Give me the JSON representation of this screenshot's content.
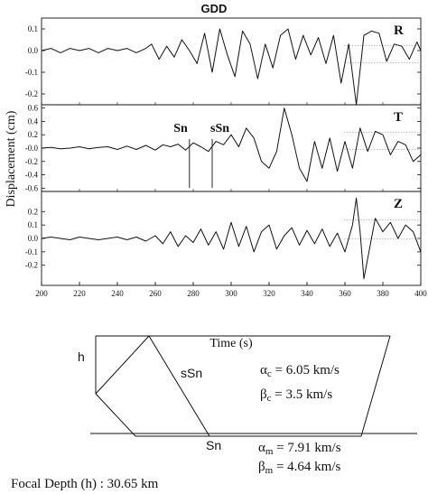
{
  "chart_data": {
    "type": "line",
    "title": "GDD",
    "xlabel": "Time (s)",
    "ylabel": "Displacement (cm)",
    "xlim": [
      200,
      400
    ],
    "x_ticks": [
      200,
      220,
      240,
      260,
      280,
      300,
      320,
      340,
      360,
      380,
      400
    ],
    "panels": [
      {
        "component": "R",
        "ylim": [
          -0.25,
          0.15
        ],
        "y_ticks": [
          0.1,
          0.0,
          -0.1,
          -0.2
        ],
        "y_tick_labels": [
          "0.1",
          "0.0",
          "-0.1",
          "-0.2"
        ],
        "x": [
          200,
          205,
          210,
          215,
          220,
          225,
          230,
          235,
          240,
          245,
          250,
          255,
          258,
          262,
          266,
          270,
          274,
          278,
          282,
          286,
          290,
          294,
          298,
          302,
          306,
          310,
          314,
          318,
          322,
          326,
          330,
          334,
          338,
          342,
          346,
          350,
          354,
          358,
          362,
          366,
          370,
          374,
          378,
          382,
          386,
          390,
          394,
          398,
          400
        ],
        "values": [
          0,
          0.01,
          -0.01,
          0.01,
          0,
          0.01,
          -0.01,
          0.01,
          0,
          0.01,
          -0.01,
          0.01,
          0.03,
          -0.04,
          0.02,
          -0.03,
          0.05,
          0,
          -0.06,
          0.08,
          -0.1,
          0.1,
          -0.02,
          -0.12,
          0.09,
          0.03,
          -0.13,
          0.03,
          -0.08,
          0.07,
          0.1,
          -0.04,
          0.07,
          -0.02,
          0.06,
          -0.06,
          0.07,
          -0.15,
          0.03,
          -0.25,
          0.07,
          0.09,
          0.08,
          -0.05,
          0.03,
          0.02,
          -0.04,
          0.04,
          0.0
        ]
      },
      {
        "component": "T",
        "ylim": [
          -0.65,
          0.65
        ],
        "y_ticks": [
          0.6,
          0.4,
          0.2,
          0.0,
          -0.2,
          -0.4,
          -0.6
        ],
        "y_tick_labels": [
          "0.6",
          "0.4",
          "0.2",
          "-0.0",
          "-0.2",
          "-0.4",
          "-0.6"
        ],
        "x": [
          200,
          205,
          210,
          215,
          220,
          225,
          230,
          235,
          240,
          245,
          250,
          255,
          260,
          264,
          268,
          272,
          276,
          280,
          284,
          288,
          292,
          296,
          300,
          304,
          308,
          312,
          316,
          320,
          324,
          328,
          332,
          336,
          340,
          344,
          348,
          352,
          356,
          360,
          364,
          368,
          372,
          376,
          380,
          384,
          388,
          392,
          396,
          400
        ],
        "values": [
          0,
          0.01,
          -0.01,
          0,
          0.02,
          -0.01,
          0.01,
          0.02,
          -0.02,
          0.03,
          -0.02,
          0.04,
          -0.03,
          0.05,
          0.02,
          0.06,
          -0.03,
          0.08,
          0.02,
          -0.05,
          0.1,
          0.05,
          0.2,
          0.02,
          0.3,
          0.15,
          -0.2,
          -0.3,
          -0.05,
          0.6,
          0.2,
          -0.3,
          -0.5,
          0.1,
          -0.3,
          0.15,
          -0.35,
          0.1,
          -0.3,
          0.3,
          -0.05,
          0.25,
          0.2,
          -0.1,
          0.1,
          0.05,
          -0.2,
          -0.1
        ]
      },
      {
        "component": "Z",
        "ylim": [
          -0.35,
          0.35
        ],
        "y_ticks": [
          0.2,
          0.1,
          0.0,
          -0.1,
          -0.2
        ],
        "y_tick_labels": [
          "0.2",
          "0.1",
          "0.0",
          "-0.1",
          "-0.2"
        ],
        "x": [
          200,
          205,
          210,
          215,
          220,
          225,
          230,
          235,
          240,
          245,
          250,
          255,
          260,
          264,
          268,
          272,
          276,
          280,
          284,
          288,
          292,
          296,
          300,
          304,
          308,
          312,
          316,
          320,
          324,
          328,
          332,
          336,
          340,
          344,
          348,
          352,
          356,
          360,
          364,
          366,
          368,
          370,
          372,
          376,
          380,
          384,
          388,
          392,
          396,
          400
        ],
        "values": [
          0,
          0.01,
          0,
          -0.01,
          0.01,
          0,
          -0.01,
          0,
          0.01,
          -0.01,
          0.01,
          -0.02,
          0.02,
          -0.04,
          0.05,
          -0.06,
          0.02,
          -0.03,
          0.07,
          -0.05,
          0.05,
          -0.08,
          0.12,
          -0.06,
          0.09,
          -0.1,
          0.05,
          0.1,
          -0.08,
          0.02,
          0.08,
          -0.05,
          0.06,
          -0.04,
          0.07,
          -0.06,
          0.04,
          -0.1,
          0.1,
          0.3,
          0.05,
          -0.3,
          -0.15,
          0.15,
          0.05,
          0.12,
          0.0,
          0.1,
          0.05,
          -0.1
        ]
      }
    ],
    "phase_markers": [
      {
        "label": "Sn",
        "time": 278
      },
      {
        "label": "sSn",
        "time": 290
      }
    ]
  },
  "diagram": {
    "h_label": "h",
    "ray_label_ssn": "sSn",
    "ray_label_sn": "Sn",
    "crust": {
      "alpha_sym": "α",
      "alpha_sub": "c",
      "alpha_value": " = 6.05 km/s",
      "beta_sym": "β",
      "beta_sub": "c",
      "beta_value": " = 3.5 km/s"
    },
    "mantle": {
      "alpha_sym": "α",
      "alpha_sub": "m",
      "alpha_value": " = 7.91 km/s",
      "beta_sym": "β",
      "beta_sub": "m",
      "beta_value": " = 4.64 km/s"
    },
    "focal_depth": "Focal Depth (h) : 30.65 km"
  }
}
